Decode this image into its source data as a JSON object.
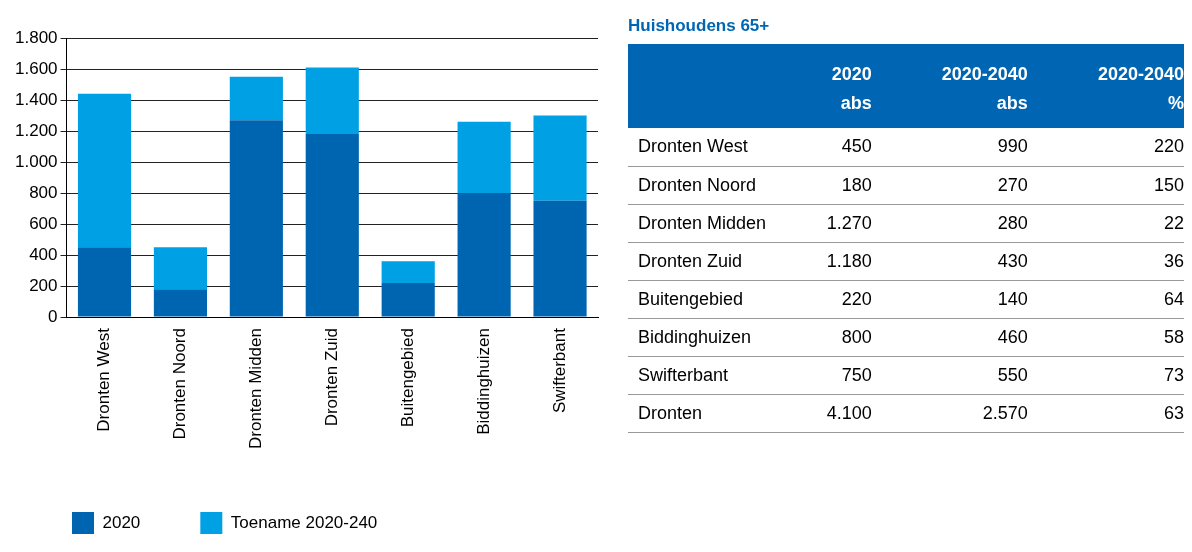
{
  "chart_data": [
    {
      "type": "bar",
      "stacked": true,
      "categories": [
        "Dronten West",
        "Dronten Noord",
        "Dronten Midden",
        "Dronten Zuid",
        "Buitengebied",
        "Biddinghuizen",
        "Swifterbant"
      ],
      "series": [
        {
          "name": "2020",
          "color": "#0065b0",
          "values": [
            450,
            180,
            1270,
            1180,
            220,
            800,
            750
          ]
        },
        {
          "name": "Toename 2020-240",
          "color": "#00a0e4",
          "values": [
            990,
            270,
            280,
            430,
            140,
            460,
            550
          ]
        }
      ],
      "ylim": [
        0,
        1800
      ],
      "yticks": [
        0,
        200,
        400,
        600,
        800,
        {
          "value": 1000,
          "label": "1.000"
        },
        {
          "value": 1200,
          "label": "1.200"
        },
        {
          "value": 1400,
          "label": "1.400"
        },
        {
          "value": 1600,
          "label": "1.600"
        },
        {
          "value": 1800,
          "label": "1.800"
        }
      ],
      "grid": "y",
      "legend": "bottom left"
    },
    {
      "type": "other",
      "title": "Huishoudens 65+",
      "categories": [
        "Dronten West",
        "Dronten Noord",
        "Dronten Midden",
        "Dronten Zuid",
        "Buitengebied",
        "Biddinghuizen",
        "Swifterbant",
        "Dronten"
      ],
      "series": [
        {
          "name": "2020\nabs",
          "values": [
            450,
            180,
            1270,
            1180,
            220,
            800,
            750,
            4100
          ],
          "value_labels": [
            "450",
            "180",
            "1.270",
            "1.180",
            "220",
            "800",
            "750",
            "4.100"
          ]
        },
        {
          "name": "2020-2040\nabs",
          "values": [
            990,
            270,
            280,
            430,
            140,
            460,
            550,
            2570
          ],
          "value_labels": [
            "990",
            "270",
            "280",
            "430",
            "140",
            "460",
            "550",
            "2.570"
          ]
        },
        {
          "name": "2020-2040\n%",
          "values": [
            220,
            150,
            22,
            36,
            64,
            58,
            73,
            63
          ],
          "value_labels": [
            "220",
            "150",
            "22",
            "36",
            "64",
            "58",
            "73",
            "63"
          ]
        }
      ]
    }
  ]
}
